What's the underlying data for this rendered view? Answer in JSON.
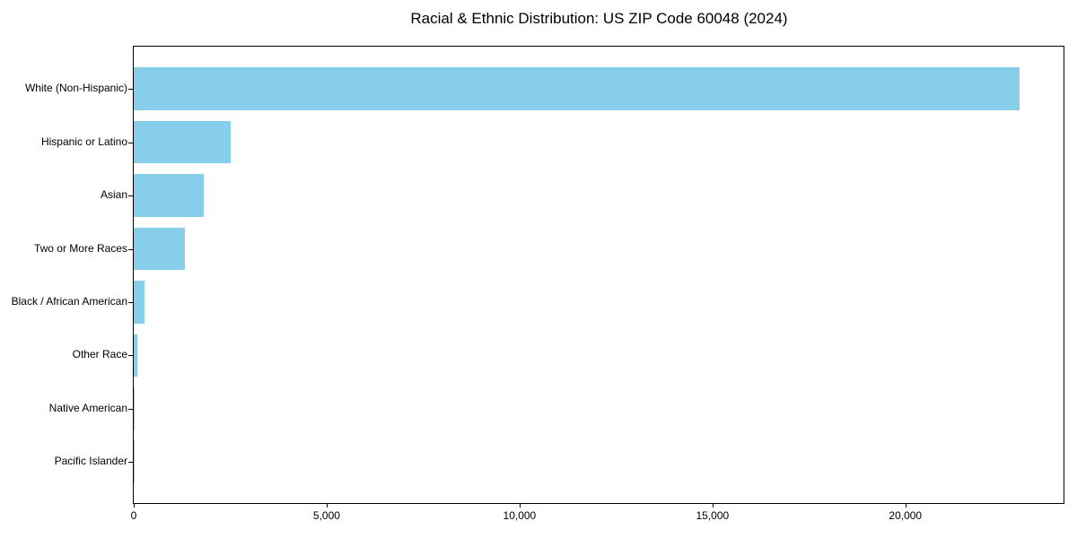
{
  "title": "Racial & Ethnic Distribution: US ZIP Code 60048 (2024)",
  "chart_data": {
    "type": "bar",
    "orientation": "horizontal",
    "title": "Racial & Ethnic Distribution: US ZIP Code 60048 (2024)",
    "xlabel": "",
    "ylabel": "",
    "categories": [
      "White (Non-Hispanic)",
      "Hispanic or Latino",
      "Asian",
      "Two or More Races",
      "Black / African American",
      "Other Race",
      "Native American",
      "Pacific Islander"
    ],
    "values": [
      22950,
      2510,
      1815,
      1320,
      290,
      90,
      25,
      5
    ],
    "xlim": [
      0,
      24100
    ],
    "xticks": [
      0,
      5000,
      10000,
      15000,
      20000
    ],
    "xtick_labels": [
      "0",
      "5,000",
      "10,000",
      "15,000",
      "20,000"
    ],
    "bar_color": "#87CEEB",
    "spine_color": "#000000",
    "background_color": "#FFFFFF",
    "grid": false,
    "legend": null
  }
}
